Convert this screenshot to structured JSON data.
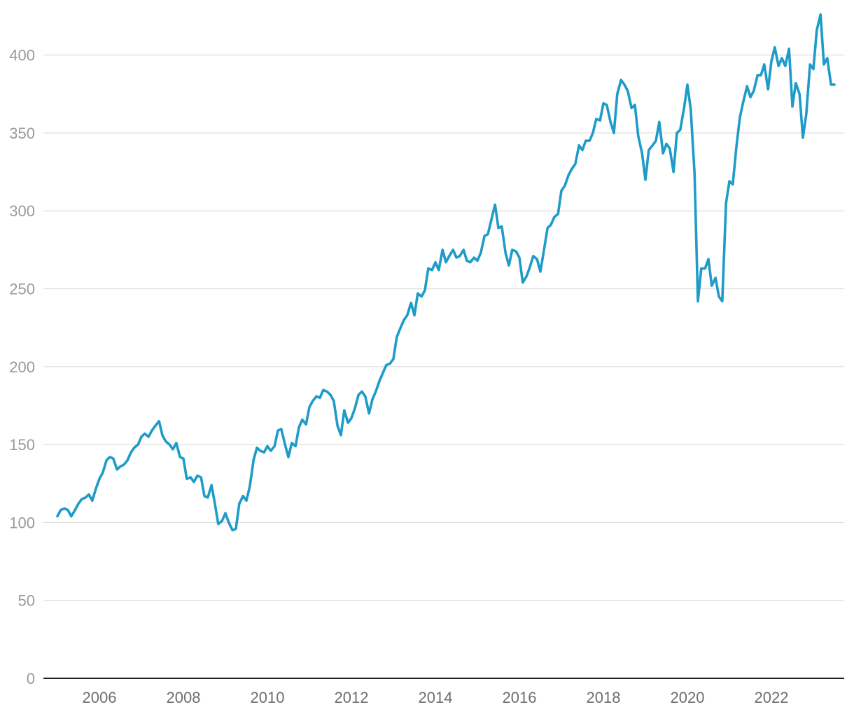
{
  "chart_data": {
    "type": "line",
    "title": "",
    "xlabel": "",
    "ylabel": "",
    "ylim": [
      0,
      425
    ],
    "xlim": [
      2004.96,
      2023.55
    ],
    "y_ticks": [
      0,
      50,
      100,
      150,
      200,
      250,
      300,
      350,
      400
    ],
    "x_ticks": [
      2006,
      2008,
      2010,
      2012,
      2014,
      2016,
      2018,
      2020,
      2022
    ],
    "y_tick_labels": [
      "0",
      "50",
      "100",
      "150",
      "200",
      "250",
      "300",
      "350",
      "400"
    ],
    "x_tick_labels": [
      "2006",
      "2008",
      "2010",
      "2012",
      "2014",
      "2016",
      "2018",
      "2020",
      "2022"
    ],
    "grid": "horizontal",
    "legend": "none",
    "series_color": "#1f9bc9",
    "series": [
      {
        "x": [
          2005.0,
          2005.08,
          2005.17,
          2005.25,
          2005.33,
          2005.42,
          2005.5,
          2005.58,
          2005.67,
          2005.75,
          2005.83,
          2005.92,
          2006.0,
          2006.08,
          2006.17,
          2006.25,
          2006.33,
          2006.42,
          2006.5,
          2006.58,
          2006.67,
          2006.75,
          2006.83,
          2006.92,
          2007.0,
          2007.08,
          2007.17,
          2007.25,
          2007.33,
          2007.42,
          2007.5,
          2007.58,
          2007.67,
          2007.75,
          2007.83,
          2007.92,
          2008.0,
          2008.08,
          2008.17,
          2008.25,
          2008.33,
          2008.42,
          2008.5,
          2008.58,
          2008.67,
          2008.75,
          2008.83,
          2008.92,
          2009.0,
          2009.08,
          2009.17,
          2009.25,
          2009.33,
          2009.42,
          2009.5,
          2009.58,
          2009.67,
          2009.75,
          2009.83,
          2009.92,
          2010.0,
          2010.08,
          2010.17,
          2010.25,
          2010.33,
          2010.42,
          2010.5,
          2010.58,
          2010.67,
          2010.75,
          2010.83,
          2010.92,
          2011.0,
          2011.08,
          2011.17,
          2011.25,
          2011.33,
          2011.42,
          2011.5,
          2011.58,
          2011.67,
          2011.75,
          2011.83,
          2011.92,
          2012.0,
          2012.08,
          2012.17,
          2012.25,
          2012.33,
          2012.42,
          2012.5,
          2012.58,
          2012.67,
          2012.75,
          2012.83,
          2012.92,
          2013.0,
          2013.08,
          2013.17,
          2013.25,
          2013.33,
          2013.42,
          2013.5,
          2013.58,
          2013.67,
          2013.75,
          2013.83,
          2013.92,
          2014.0,
          2014.08,
          2014.17,
          2014.25,
          2014.33,
          2014.42,
          2014.5,
          2014.58,
          2014.67,
          2014.75,
          2014.83,
          2014.92,
          2015.0,
          2015.08,
          2015.17,
          2015.25,
          2015.33,
          2015.42,
          2015.5,
          2015.58,
          2015.67,
          2015.75,
          2015.83,
          2015.92,
          2016.0,
          2016.08,
          2016.17,
          2016.25,
          2016.33,
          2016.42,
          2016.5,
          2016.58,
          2016.67,
          2016.75,
          2016.83,
          2016.92,
          2017.0,
          2017.08,
          2017.17,
          2017.25,
          2017.33,
          2017.42,
          2017.5,
          2017.58,
          2017.67,
          2017.75,
          2017.83,
          2017.92,
          2018.0,
          2018.08,
          2018.17,
          2018.25,
          2018.33,
          2018.42,
          2018.5,
          2018.58,
          2018.67,
          2018.75,
          2018.83,
          2018.92,
          2019.0,
          2019.08,
          2019.17,
          2019.25,
          2019.33,
          2019.42,
          2019.5,
          2019.58,
          2019.67,
          2019.75,
          2019.83,
          2019.92,
          2020.0,
          2020.08,
          2020.17,
          2020.25,
          2020.33,
          2020.42,
          2020.5,
          2020.58,
          2020.67,
          2020.75,
          2020.83,
          2020.92,
          2021.0,
          2021.08,
          2021.17,
          2021.25,
          2021.33,
          2021.42,
          2021.5,
          2021.58,
          2021.67,
          2021.75,
          2021.83,
          2021.92,
          2022.0,
          2022.08,
          2022.17,
          2022.25,
          2022.33,
          2022.42,
          2022.5,
          2022.58,
          2022.67,
          2022.75,
          2022.83,
          2022.92,
          2023.0,
          2023.08,
          2023.17,
          2023.25,
          2023.33,
          2023.42,
          2023.5
        ],
        "values": [
          104,
          108,
          109,
          108,
          104,
          108,
          112,
          115,
          116,
          118,
          114,
          122,
          128,
          132,
          140,
          142,
          141,
          134,
          136,
          137,
          140,
          145,
          148,
          150,
          155,
          157,
          155,
          159,
          162,
          165,
          156,
          152,
          150,
          147,
          151,
          142,
          141,
          128,
          129,
          126,
          130,
          129,
          117,
          116,
          124,
          112,
          99,
          101,
          106,
          100,
          95,
          96,
          112,
          117,
          114,
          123,
          140,
          148,
          146,
          145,
          149,
          146,
          149,
          159,
          160,
          150,
          142,
          151,
          149,
          161,
          166,
          163,
          174,
          178,
          181,
          180,
          185,
          184,
          182,
          178,
          162,
          156,
          172,
          164,
          167,
          173,
          182,
          184,
          181,
          170,
          179,
          184,
          191,
          196,
          201,
          202,
          205,
          219,
          225,
          230,
          233,
          241,
          233,
          247,
          245,
          249,
          263,
          262,
          267,
          262,
          275,
          267,
          271,
          275,
          270,
          271,
          275,
          268,
          267,
          270,
          268,
          273,
          284,
          285,
          294,
          304,
          289,
          290,
          273,
          265,
          275,
          274,
          270,
          254,
          258,
          264,
          271,
          269,
          261,
          274,
          289,
          291,
          296,
          298,
          313,
          316,
          323,
          327,
          330,
          342,
          339,
          345,
          345,
          350,
          359,
          358,
          369,
          368,
          357,
          350,
          375,
          384,
          381,
          377,
          366,
          368,
          348,
          337,
          320,
          339,
          342,
          345,
          357,
          337,
          343,
          340,
          325,
          350,
          352,
          366,
          381,
          365,
          324,
          242,
          263,
          263,
          269,
          252,
          257,
          245,
          242,
          305,
          319,
          317,
          342,
          360,
          370,
          380,
          373,
          377,
          387,
          387,
          394,
          378,
          396,
          405,
          393,
          398,
          393,
          404,
          367,
          382,
          375,
          347,
          362,
          394,
          391,
          416,
          426,
          394,
          398,
          381,
          381
        ]
      }
    ]
  }
}
